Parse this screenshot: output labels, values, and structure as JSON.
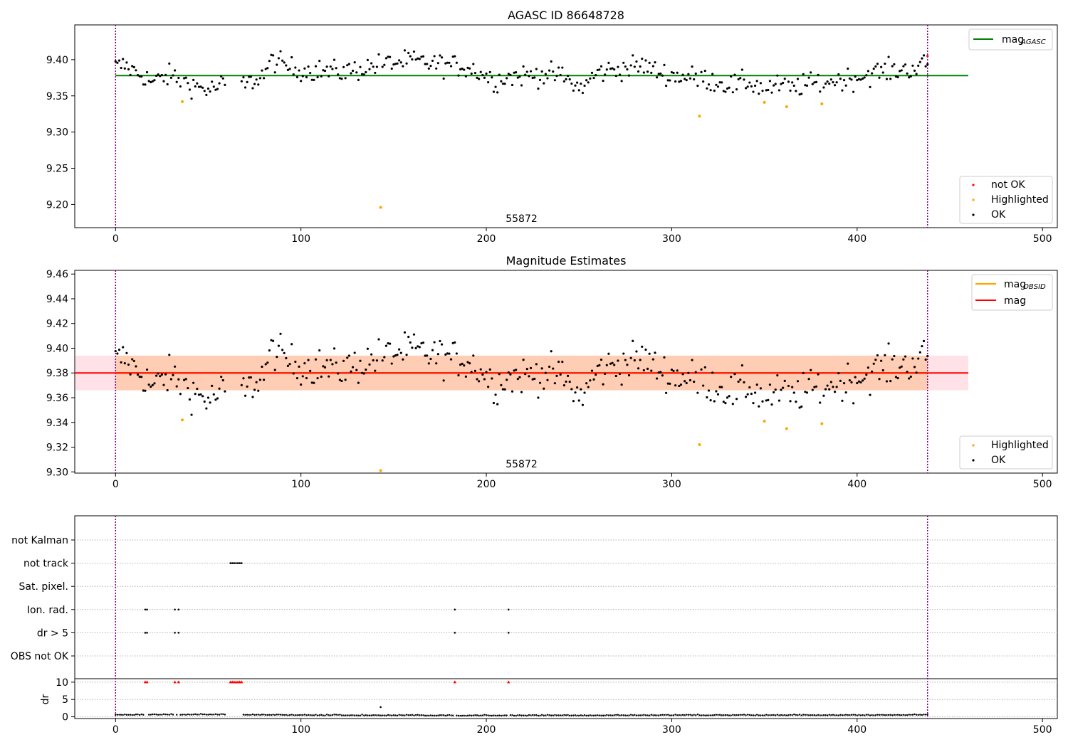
{
  "chart_data": [
    {
      "type": "scatter",
      "title": "AGASC ID 86648728",
      "obsid_label": "55872",
      "xlim": [
        -22,
        508
      ],
      "ylim": [
        9.168,
        9.448
      ],
      "xticks": [
        0,
        100,
        200,
        300,
        400,
        500
      ],
      "yticks": [
        9.2,
        9.25,
        9.3,
        9.35,
        9.4
      ],
      "ytick_labels": [
        "9.20",
        "9.25",
        "9.30",
        "9.35",
        "9.40"
      ],
      "vlines": [
        0,
        438
      ],
      "hline": {
        "y": 9.378,
        "x": [
          0,
          460
        ],
        "label_main": "mag",
        "label_sub": "AGASC",
        "color": "#008000"
      },
      "legend_series": [
        {
          "name": "not OK",
          "color": "#ff0000"
        },
        {
          "name": "Highlighted",
          "color": "#ffa500"
        },
        {
          "name": "OK",
          "color": "#000000"
        }
      ],
      "highlighted": {
        "x": [
          36,
          143,
          315,
          350,
          362,
          381
        ],
        "y": [
          9.342,
          9.196,
          9.322,
          9.341,
          9.335,
          9.339
        ]
      },
      "not_ok": {
        "x": [
          438
        ],
        "y": [
          9.405
        ]
      },
      "ok_trend": {
        "x": [
          0,
          5,
          10,
          15,
          20,
          25,
          30,
          35,
          40,
          45,
          50,
          55,
          60,
          62,
          70,
          75,
          80,
          85,
          90,
          95,
          100,
          110,
          120,
          130,
          140,
          150,
          160,
          170,
          180,
          190,
          200,
          205,
          210,
          220,
          230,
          240,
          245,
          250,
          253,
          260,
          270,
          280,
          285,
          290,
          300,
          310,
          320,
          330,
          335,
          340,
          350,
          360,
          365,
          370,
          380,
          390,
          400,
          410,
          420,
          430,
          438
        ],
        "y": [
          9.39,
          9.392,
          9.384,
          9.378,
          9.368,
          9.375,
          9.378,
          9.372,
          9.367,
          9.362,
          9.358,
          9.362,
          9.368,
          9.368,
          9.365,
          9.372,
          9.38,
          9.4,
          9.393,
          9.388,
          9.386,
          9.385,
          9.383,
          9.386,
          9.392,
          9.396,
          9.398,
          9.395,
          9.392,
          9.39,
          9.378,
          9.37,
          9.376,
          9.378,
          9.38,
          9.378,
          9.37,
          9.36,
          9.365,
          9.382,
          9.387,
          9.39,
          9.392,
          9.385,
          9.378,
          9.376,
          9.372,
          9.366,
          9.364,
          9.37,
          9.36,
          9.364,
          9.36,
          9.365,
          9.368,
          9.372,
          9.375,
          9.383,
          9.385,
          9.388,
          9.394
        ]
      }
    },
    {
      "type": "scatter",
      "title": "Magnitude Estimates",
      "obsid_label": "55872",
      "xlim": [
        -22,
        508
      ],
      "ylim": [
        9.299,
        9.463
      ],
      "xticks": [
        0,
        100,
        200,
        300,
        400,
        500
      ],
      "yticks": [
        9.3,
        9.32,
        9.34,
        9.36,
        9.38,
        9.4,
        9.42,
        9.44,
        9.46
      ],
      "ytick_labels": [
        "9.30",
        "9.32",
        "9.34",
        "9.36",
        "9.38",
        "9.40",
        "9.42",
        "9.44",
        "9.46"
      ],
      "vlines": [
        0,
        438
      ],
      "mag": {
        "y": 9.38,
        "band": [
          9.366,
          9.394
        ],
        "x": [
          -22,
          460
        ],
        "label": "mag",
        "color": "#ff0000"
      },
      "mag_obsid": {
        "y": 9.38,
        "band": [
          9.366,
          9.394
        ],
        "x": [
          0,
          438
        ],
        "label_main": "mag",
        "label_sub": "OBSID",
        "color": "#ffa500"
      },
      "legend_series": [
        {
          "name": "Highlighted",
          "color": "#ffa500"
        },
        {
          "name": "OK",
          "color": "#000000"
        }
      ],
      "highlighted": {
        "x": [
          36,
          143,
          315,
          350,
          362,
          381
        ],
        "y": [
          9.342,
          9.301,
          9.322,
          9.341,
          9.335,
          9.339
        ]
      }
    },
    {
      "type": "scatter",
      "xlim": [
        -22,
        508
      ],
      "xticks": [
        0,
        100,
        200,
        300,
        400,
        500
      ],
      "vlines": [
        0,
        438
      ],
      "flag_rows": [
        "not Kalman",
        "not track",
        "Sat. pixel.",
        "Ion. rad.",
        "dr > 5",
        "OBS not OK"
      ],
      "flags": [
        {
          "row": "not track",
          "x": [
            62,
            63,
            64,
            65,
            66,
            67,
            68
          ]
        },
        {
          "row": "Ion. rad.",
          "x": [
            16,
            17,
            32,
            34,
            183,
            212
          ]
        },
        {
          "row": "dr > 5",
          "x": [
            16,
            17,
            32,
            34,
            183,
            212
          ]
        }
      ],
      "dr": {
        "ylabel": "dr",
        "ylim": [
          -0.5,
          11
        ],
        "yticks": [
          0,
          5,
          10
        ],
        "clip_value": 10,
        "clipped_x": [
          16,
          17,
          32,
          34,
          62,
          63,
          64,
          65,
          66,
          67,
          68,
          183,
          212
        ],
        "outlier": {
          "x": 143,
          "y": 2.8
        },
        "baseline": {
          "x": [
            0,
            60,
            100,
            200,
            300,
            400,
            438
          ],
          "y": [
            0.5,
            0.6,
            0.4,
            0.3,
            0.4,
            0.4,
            0.5
          ]
        }
      }
    }
  ]
}
